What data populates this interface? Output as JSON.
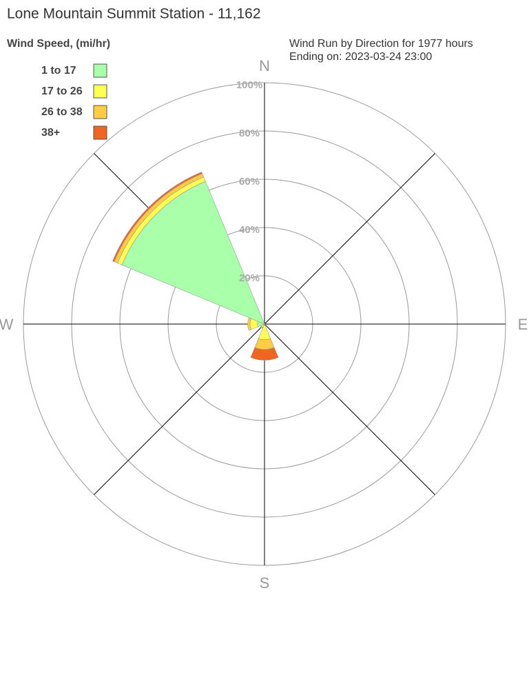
{
  "chart_data": {
    "type": "windrose",
    "title": "Lone Mountain Summit Station - 11,162",
    "legend_title": "Wind Speed, (mi/hr)",
    "subtitle": [
      "Wind Run by Direction for 1977 hours",
      "Ending on: 2023-03-24 23:00"
    ],
    "categories": [
      "N",
      null,
      "E",
      null,
      "S",
      null,
      "W",
      null
    ],
    "series": [
      {
        "name": "1 to 17",
        "color": "#aaffaa",
        "values": [
          0.3,
          0.2,
          0.2,
          0.3,
          0.5,
          0.8,
          3.0,
          64
        ]
      },
      {
        "name": "17 to 26",
        "color": "#ffff55",
        "values": [
          0,
          0,
          0,
          0.1,
          6,
          0.8,
          3,
          2
        ]
      },
      {
        "name": "26 to 38",
        "color": "#ffcc44",
        "values": [
          0,
          0,
          0,
          0,
          4,
          0.3,
          1,
          1.5
        ]
      },
      {
        "name": "38+",
        "color": "#ee6622",
        "values": [
          0,
          0,
          0,
          0,
          4.5,
          0,
          0,
          0.7
        ]
      }
    ],
    "rlim": [
      0,
      100
    ],
    "rticks": [
      {
        "value": 20,
        "label": "20%"
      },
      {
        "value": 40,
        "label": "40%"
      },
      {
        "value": 60,
        "label": "60%"
      },
      {
        "value": 80,
        "label": "80%"
      },
      {
        "value": 100,
        "label": "100%"
      }
    ]
  }
}
